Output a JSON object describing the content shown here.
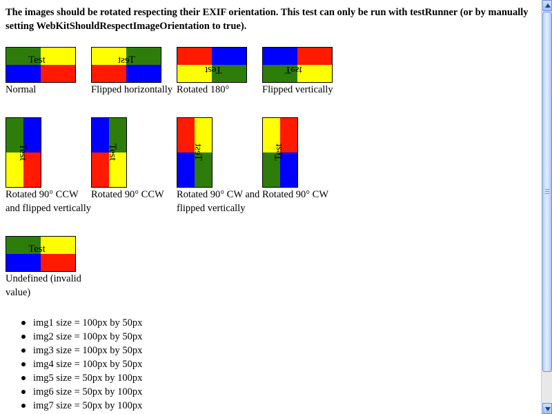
{
  "heading": "The images should be rotated respecting their EXIF orientation. This test can only be run with testRunner (or by manually setting WebKitShouldRespectImageOrientation to true).",
  "image_text": "Test",
  "colors": {
    "green": "#2e7d0b",
    "yellow": "#ffff00",
    "blue": "#0000ff",
    "red": "#ff1a00"
  },
  "images": [
    {
      "caption": "Normal"
    },
    {
      "caption": "Flipped horizontally"
    },
    {
      "caption": "Rotated 180°"
    },
    {
      "caption": "Flipped vertically"
    },
    {
      "caption": "Rotated 90° CCW and flipped vertically"
    },
    {
      "caption": "Rotated 90° CCW"
    },
    {
      "caption": "Rotated 90° CW and flipped vertically"
    },
    {
      "caption": "Rotated 90° CW"
    },
    {
      "caption": "Undefined (invalid value)"
    }
  ],
  "sizes": [
    "img1 size = 100px by 50px",
    "img2 size = 100px by 50px",
    "img3 size = 100px by 50px",
    "img4 size = 100px by 50px",
    "img5 size = 50px by 100px",
    "img6 size = 50px by 100px",
    "img7 size = 50px by 100px"
  ]
}
